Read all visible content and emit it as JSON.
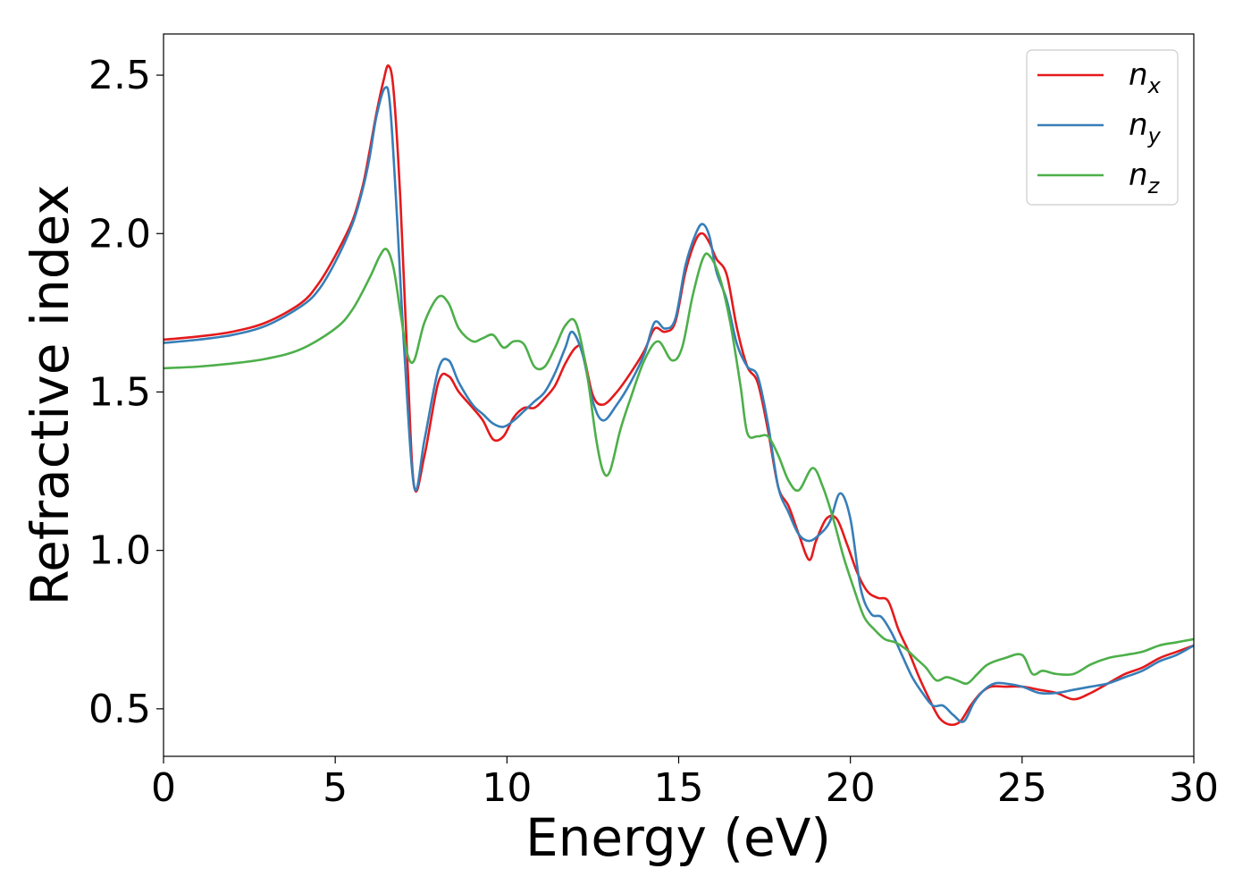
{
  "chart_data": {
    "type": "line",
    "xlabel": "Energy (eV)",
    "ylabel": "Refractive index",
    "xlim": [
      0,
      30
    ],
    "ylim": [
      0.35,
      2.63
    ],
    "xticks": [
      0,
      5,
      10,
      15,
      20,
      25,
      30
    ],
    "xtick_labels": [
      "0",
      "5",
      "10",
      "15",
      "20",
      "25",
      "30"
    ],
    "yticks": [
      0.5,
      1.0,
      1.5,
      2.0,
      2.5
    ],
    "ytick_labels": [
      "0.5",
      "1.0",
      "1.5",
      "2.0",
      "2.5"
    ],
    "grid": false,
    "legend_position": "top-right",
    "series": [
      {
        "name": "n_x",
        "label_main": "n",
        "label_sub": "x",
        "color": "#e41a1c",
        "x": [
          0,
          1,
          2,
          3,
          4,
          4.5,
          5,
          5.5,
          5.8,
          6.0,
          6.2,
          6.4,
          6.55,
          6.7,
          6.9,
          7.1,
          7.3,
          7.6,
          8.0,
          8.3,
          8.6,
          9.0,
          9.3,
          9.6,
          9.9,
          10.2,
          10.5,
          10.8,
          11.1,
          11.4,
          11.7,
          12.0,
          12.2,
          12.5,
          12.8,
          13.2,
          13.6,
          14.0,
          14.3,
          14.6,
          14.9,
          15.2,
          15.5,
          15.7,
          15.9,
          16.1,
          16.4,
          16.7,
          17.0,
          17.3,
          17.6,
          17.9,
          18.2,
          18.5,
          18.8,
          19.0,
          19.3,
          19.6,
          19.9,
          20.2,
          20.5,
          20.8,
          21.1,
          21.4,
          21.7,
          22.0,
          22.3,
          22.6,
          22.9,
          23.2,
          23.5,
          23.8,
          24.1,
          24.5,
          25.0,
          25.5,
          26.0,
          26.5,
          27.0,
          27.5,
          28.0,
          28.5,
          29.0,
          29.5,
          30.0
        ],
        "y": [
          1.665,
          1.675,
          1.69,
          1.72,
          1.78,
          1.84,
          1.93,
          2.04,
          2.15,
          2.26,
          2.38,
          2.48,
          2.53,
          2.45,
          2.1,
          1.6,
          1.2,
          1.3,
          1.53,
          1.55,
          1.5,
          1.45,
          1.41,
          1.35,
          1.36,
          1.42,
          1.45,
          1.45,
          1.48,
          1.52,
          1.59,
          1.64,
          1.63,
          1.49,
          1.46,
          1.5,
          1.56,
          1.63,
          1.7,
          1.69,
          1.72,
          1.88,
          1.98,
          2.0,
          1.97,
          1.92,
          1.87,
          1.7,
          1.58,
          1.53,
          1.38,
          1.2,
          1.14,
          1.05,
          0.97,
          1.03,
          1.1,
          1.1,
          1.02,
          0.93,
          0.87,
          0.85,
          0.84,
          0.75,
          0.68,
          0.6,
          0.53,
          0.47,
          0.45,
          0.46,
          0.51,
          0.55,
          0.57,
          0.57,
          0.57,
          0.56,
          0.55,
          0.53,
          0.55,
          0.58,
          0.61,
          0.63,
          0.66,
          0.68,
          0.7
        ]
      },
      {
        "name": "n_y",
        "label_main": "n",
        "label_sub": "y",
        "color": "#377eb8",
        "x": [
          0,
          1,
          2,
          3,
          4,
          4.5,
          5,
          5.5,
          5.8,
          6.0,
          6.2,
          6.45,
          6.6,
          6.8,
          7.0,
          7.3,
          7.6,
          8.0,
          8.3,
          8.6,
          9.0,
          9.3,
          9.6,
          9.9,
          10.2,
          10.5,
          10.8,
          11.1,
          11.4,
          11.7,
          11.9,
          12.2,
          12.5,
          12.8,
          13.2,
          13.6,
          14.0,
          14.3,
          14.6,
          14.9,
          15.2,
          15.5,
          15.7,
          15.9,
          16.1,
          16.4,
          16.7,
          17.0,
          17.3,
          17.6,
          17.9,
          18.2,
          18.5,
          18.8,
          19.1,
          19.4,
          19.7,
          20.0,
          20.3,
          20.6,
          20.9,
          21.2,
          21.5,
          21.8,
          22.1,
          22.4,
          22.7,
          23.0,
          23.3,
          23.6,
          23.9,
          24.2,
          24.5,
          25.0,
          25.5,
          26.0,
          26.5,
          27.0,
          27.5,
          28.0,
          28.5,
          29.0,
          29.5,
          30.0
        ],
        "y": [
          1.655,
          1.665,
          1.68,
          1.71,
          1.77,
          1.82,
          1.91,
          2.03,
          2.14,
          2.24,
          2.37,
          2.46,
          2.4,
          2.05,
          1.65,
          1.2,
          1.35,
          1.57,
          1.6,
          1.53,
          1.46,
          1.43,
          1.4,
          1.39,
          1.41,
          1.44,
          1.47,
          1.5,
          1.56,
          1.64,
          1.69,
          1.62,
          1.47,
          1.41,
          1.46,
          1.53,
          1.62,
          1.72,
          1.7,
          1.73,
          1.9,
          2.0,
          2.03,
          1.99,
          1.88,
          1.79,
          1.65,
          1.58,
          1.55,
          1.4,
          1.2,
          1.12,
          1.05,
          1.03,
          1.05,
          1.09,
          1.18,
          1.1,
          0.88,
          0.8,
          0.79,
          0.74,
          0.67,
          0.6,
          0.55,
          0.51,
          0.51,
          0.48,
          0.46,
          0.52,
          0.56,
          0.58,
          0.58,
          0.57,
          0.55,
          0.55,
          0.56,
          0.57,
          0.58,
          0.6,
          0.62,
          0.65,
          0.67,
          0.7
        ]
      },
      {
        "name": "n_z",
        "label_main": "n",
        "label_sub": "z",
        "color": "#4daf4a",
        "x": [
          0,
          1,
          2,
          3,
          4,
          5,
          5.5,
          6.0,
          6.3,
          6.5,
          6.7,
          6.9,
          7.1,
          7.3,
          7.6,
          8.0,
          8.3,
          8.6,
          9.0,
          9.3,
          9.6,
          9.9,
          10.2,
          10.5,
          10.8,
          11.1,
          11.4,
          11.7,
          12.0,
          12.3,
          12.6,
          12.8,
          13.0,
          13.3,
          13.6,
          14.0,
          14.4,
          14.8,
          15.1,
          15.4,
          15.7,
          15.9,
          16.2,
          16.5,
          16.8,
          17.0,
          17.3,
          17.6,
          17.9,
          18.2,
          18.5,
          18.9,
          19.2,
          19.5,
          19.8,
          20.1,
          20.4,
          20.7,
          21.0,
          21.3,
          21.6,
          21.9,
          22.2,
          22.5,
          22.8,
          23.1,
          23.4,
          23.7,
          24.0,
          24.5,
          25.0,
          25.3,
          25.6,
          26.0,
          26.5,
          27.0,
          27.5,
          28.0,
          28.5,
          29.0,
          29.5,
          30.0
        ],
        "y": [
          1.575,
          1.58,
          1.59,
          1.605,
          1.635,
          1.7,
          1.76,
          1.86,
          1.93,
          1.95,
          1.89,
          1.75,
          1.62,
          1.6,
          1.72,
          1.8,
          1.78,
          1.7,
          1.66,
          1.67,
          1.68,
          1.64,
          1.66,
          1.65,
          1.58,
          1.58,
          1.64,
          1.71,
          1.72,
          1.58,
          1.35,
          1.25,
          1.25,
          1.38,
          1.48,
          1.6,
          1.66,
          1.6,
          1.64,
          1.8,
          1.92,
          1.93,
          1.86,
          1.72,
          1.52,
          1.37,
          1.36,
          1.36,
          1.3,
          1.22,
          1.19,
          1.26,
          1.2,
          1.1,
          0.98,
          0.88,
          0.79,
          0.75,
          0.72,
          0.71,
          0.69,
          0.66,
          0.63,
          0.59,
          0.6,
          0.59,
          0.58,
          0.61,
          0.64,
          0.66,
          0.67,
          0.61,
          0.62,
          0.61,
          0.61,
          0.64,
          0.66,
          0.67,
          0.68,
          0.7,
          0.71,
          0.72
        ]
      }
    ]
  }
}
